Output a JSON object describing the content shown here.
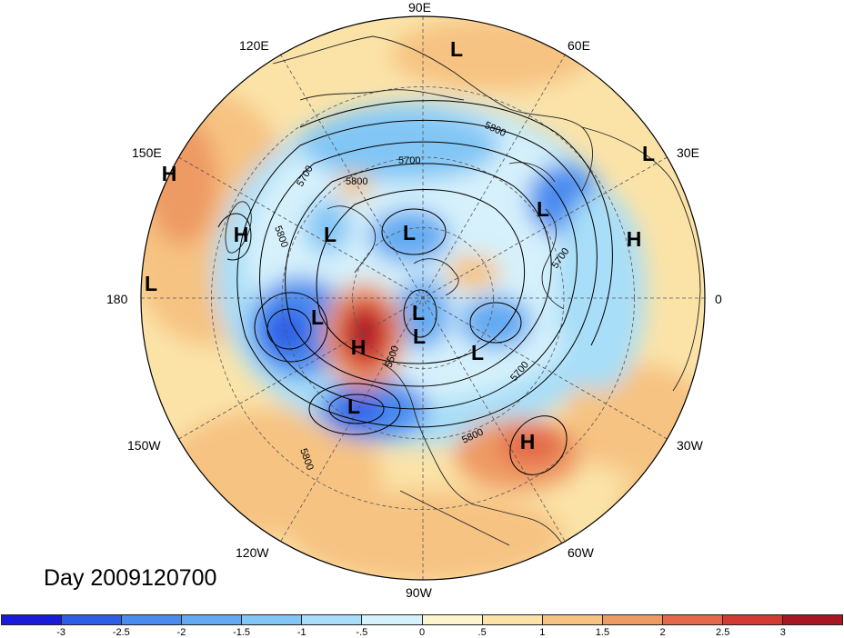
{
  "title": "Day 2009120700",
  "longitude_labels": {
    "lon_90E": "90E",
    "lon_120E": "120E",
    "lon_60E": "60E",
    "lon_150E": "150E",
    "lon_30E": "30E",
    "lon_180": "180",
    "lon_0": "0",
    "lon_150W": "150W",
    "lon_30W": "30W",
    "lon_120W": "120W",
    "lon_60W": "60W",
    "lon_90W": "90W"
  },
  "pressure_centers": [
    {
      "type": "L"
    },
    {
      "type": "L"
    },
    {
      "type": "H"
    },
    {
      "type": "H"
    },
    {
      "type": "L"
    },
    {
      "type": "L"
    },
    {
      "type": "L"
    },
    {
      "type": "L"
    },
    {
      "type": "H"
    },
    {
      "type": "L"
    },
    {
      "type": "H"
    },
    {
      "type": "L"
    },
    {
      "type": "L"
    },
    {
      "type": "L"
    },
    {
      "type": "L"
    },
    {
      "type": "H"
    }
  ],
  "contour_labels": [
    "5800",
    "5700",
    "5800",
    "5800",
    "5700",
    "5700",
    "5500",
    "5800",
    "5800",
    "5700"
  ],
  "colorbar": {
    "ticks": [
      "-3",
      "-2.5",
      "-2",
      "-1.5",
      "-1",
      "-.5",
      "0",
      ".5",
      "1",
      "1.5",
      "2",
      "2.5",
      "3"
    ],
    "colors": [
      "#1a1adb",
      "#2f5ee6",
      "#4a8bef",
      "#63aaf2",
      "#82c6f5",
      "#a8def8",
      "#d6f1fb",
      "#fdf5cf",
      "#fbe3a8",
      "#f6c382",
      "#ee9a63",
      "#e4694a",
      "#d33a34",
      "#a81621"
    ]
  }
}
